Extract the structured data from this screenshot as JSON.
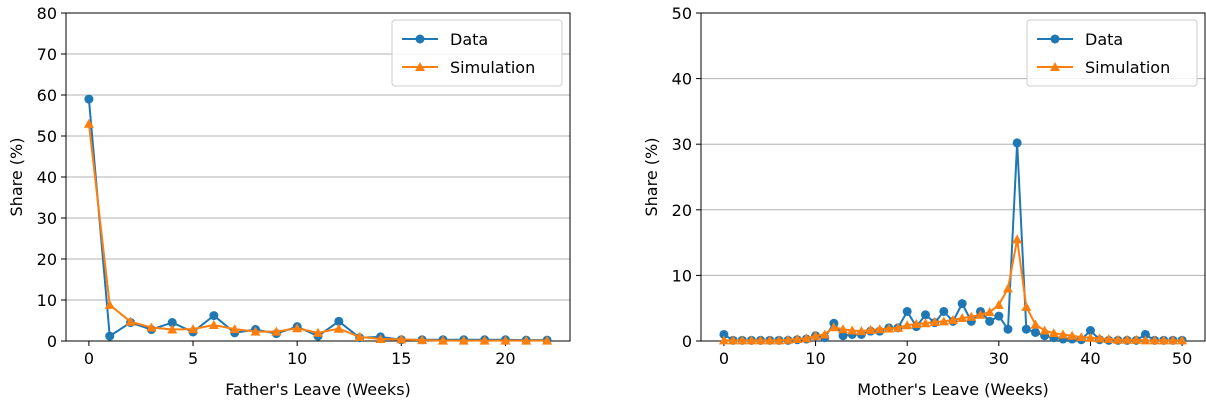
{
  "colors": {
    "data": "#1f77b4",
    "simulation": "#ff7f0e",
    "grid": "#b0b0b0"
  },
  "chart_data": [
    {
      "type": "line",
      "xlabel": "Father's Leave (Weeks)",
      "ylabel": "Share (%)",
      "xlim": [
        -1.1,
        23.1
      ],
      "ylim": [
        0,
        80
      ],
      "xticks": [
        0,
        5,
        10,
        15,
        20
      ],
      "yticks": [
        0,
        10,
        20,
        30,
        40,
        50,
        60,
        70,
        80
      ],
      "grid": "horizontal",
      "legend_position": "top-right",
      "series": [
        {
          "name": "Data",
          "marker": "circle",
          "x": [
            0,
            1,
            2,
            3,
            4,
            5,
            6,
            7,
            8,
            9,
            10,
            11,
            12,
            13,
            14,
            15,
            16,
            17,
            18,
            19,
            20,
            21,
            22
          ],
          "y": [
            59,
            1.2,
            4.5,
            2.8,
            4.5,
            2.2,
            6.2,
            2.0,
            2.8,
            1.8,
            3.5,
            1.2,
            4.8,
            0.8,
            1.0,
            0.3,
            0.3,
            0.3,
            0.3,
            0.3,
            0.3,
            0.2,
            0.2
          ]
        },
        {
          "name": "Simulation",
          "marker": "triangle",
          "x": [
            0,
            1,
            2,
            3,
            4,
            5,
            6,
            7,
            8,
            9,
            10,
            11,
            12,
            13,
            14,
            15,
            16,
            17,
            18,
            19,
            20,
            21,
            22
          ],
          "y": [
            53,
            8.8,
            4.7,
            3.3,
            2.8,
            2.9,
            3.9,
            2.9,
            2.3,
            2.3,
            3.1,
            2.0,
            3.0,
            1.0,
            0.5,
            0.4,
            0.2,
            0.1,
            0.1,
            0.1,
            0.1,
            0.1,
            0.1
          ]
        }
      ]
    },
    {
      "type": "line",
      "xlabel": "Mother's Leave (Weeks)",
      "ylabel": "Share (%)",
      "xlim": [
        -2.5,
        52.5
      ],
      "ylim": [
        0,
        50
      ],
      "xticks": [
        0,
        10,
        20,
        30,
        40,
        50
      ],
      "yticks": [
        0,
        10,
        20,
        30,
        40,
        50
      ],
      "grid": "horizontal",
      "legend_position": "top-right",
      "series": [
        {
          "name": "Data",
          "marker": "circle",
          "x": [
            0,
            1,
            2,
            3,
            4,
            5,
            6,
            7,
            8,
            9,
            10,
            11,
            12,
            13,
            14,
            15,
            16,
            17,
            18,
            19,
            20,
            21,
            22,
            23,
            24,
            25,
            26,
            27,
            28,
            29,
            30,
            31,
            32,
            33,
            34,
            35,
            36,
            37,
            38,
            39,
            40,
            41,
            42,
            43,
            44,
            45,
            46,
            47,
            48,
            49,
            50
          ],
          "y": [
            1.0,
            0.1,
            0.1,
            0.1,
            0.1,
            0.1,
            0.1,
            0.1,
            0.2,
            0.3,
            0.8,
            0.5,
            2.7,
            0.8,
            1.0,
            1.0,
            1.5,
            1.5,
            2.0,
            2.0,
            4.5,
            2.2,
            4.0,
            2.8,
            4.5,
            3.0,
            5.7,
            3.0,
            4.5,
            3.0,
            3.8,
            1.8,
            30.2,
            1.8,
            1.3,
            0.8,
            0.5,
            0.3,
            0.3,
            0.2,
            1.6,
            0.2,
            0.1,
            0.1,
            0.1,
            0.1,
            1.0,
            0.1,
            0.1,
            0.1,
            0.1
          ]
        },
        {
          "name": "Simulation",
          "marker": "triangle",
          "x": [
            0,
            1,
            2,
            3,
            4,
            5,
            6,
            7,
            8,
            9,
            10,
            11,
            12,
            13,
            14,
            15,
            16,
            17,
            18,
            19,
            20,
            21,
            22,
            23,
            24,
            25,
            26,
            27,
            28,
            29,
            30,
            31,
            32,
            33,
            34,
            35,
            36,
            37,
            38,
            39,
            40,
            41,
            42,
            43,
            44,
            45,
            46,
            47,
            48,
            49,
            50
          ],
          "y": [
            0.1,
            0.1,
            0.1,
            0.1,
            0.1,
            0.1,
            0.1,
            0.2,
            0.3,
            0.4,
            0.8,
            1.0,
            2.1,
            1.8,
            1.6,
            1.5,
            1.7,
            1.8,
            1.9,
            2.0,
            2.4,
            2.6,
            2.7,
            2.9,
            3.0,
            3.2,
            3.5,
            3.7,
            4.0,
            4.4,
            5.5,
            8.0,
            15.5,
            5.2,
            2.5,
            1.6,
            1.2,
            1.0,
            0.8,
            0.6,
            0.5,
            0.4,
            0.3,
            0.2,
            0.2,
            0.2,
            0.1,
            0.1,
            0.1,
            0.1,
            0.1
          ]
        }
      ]
    }
  ]
}
